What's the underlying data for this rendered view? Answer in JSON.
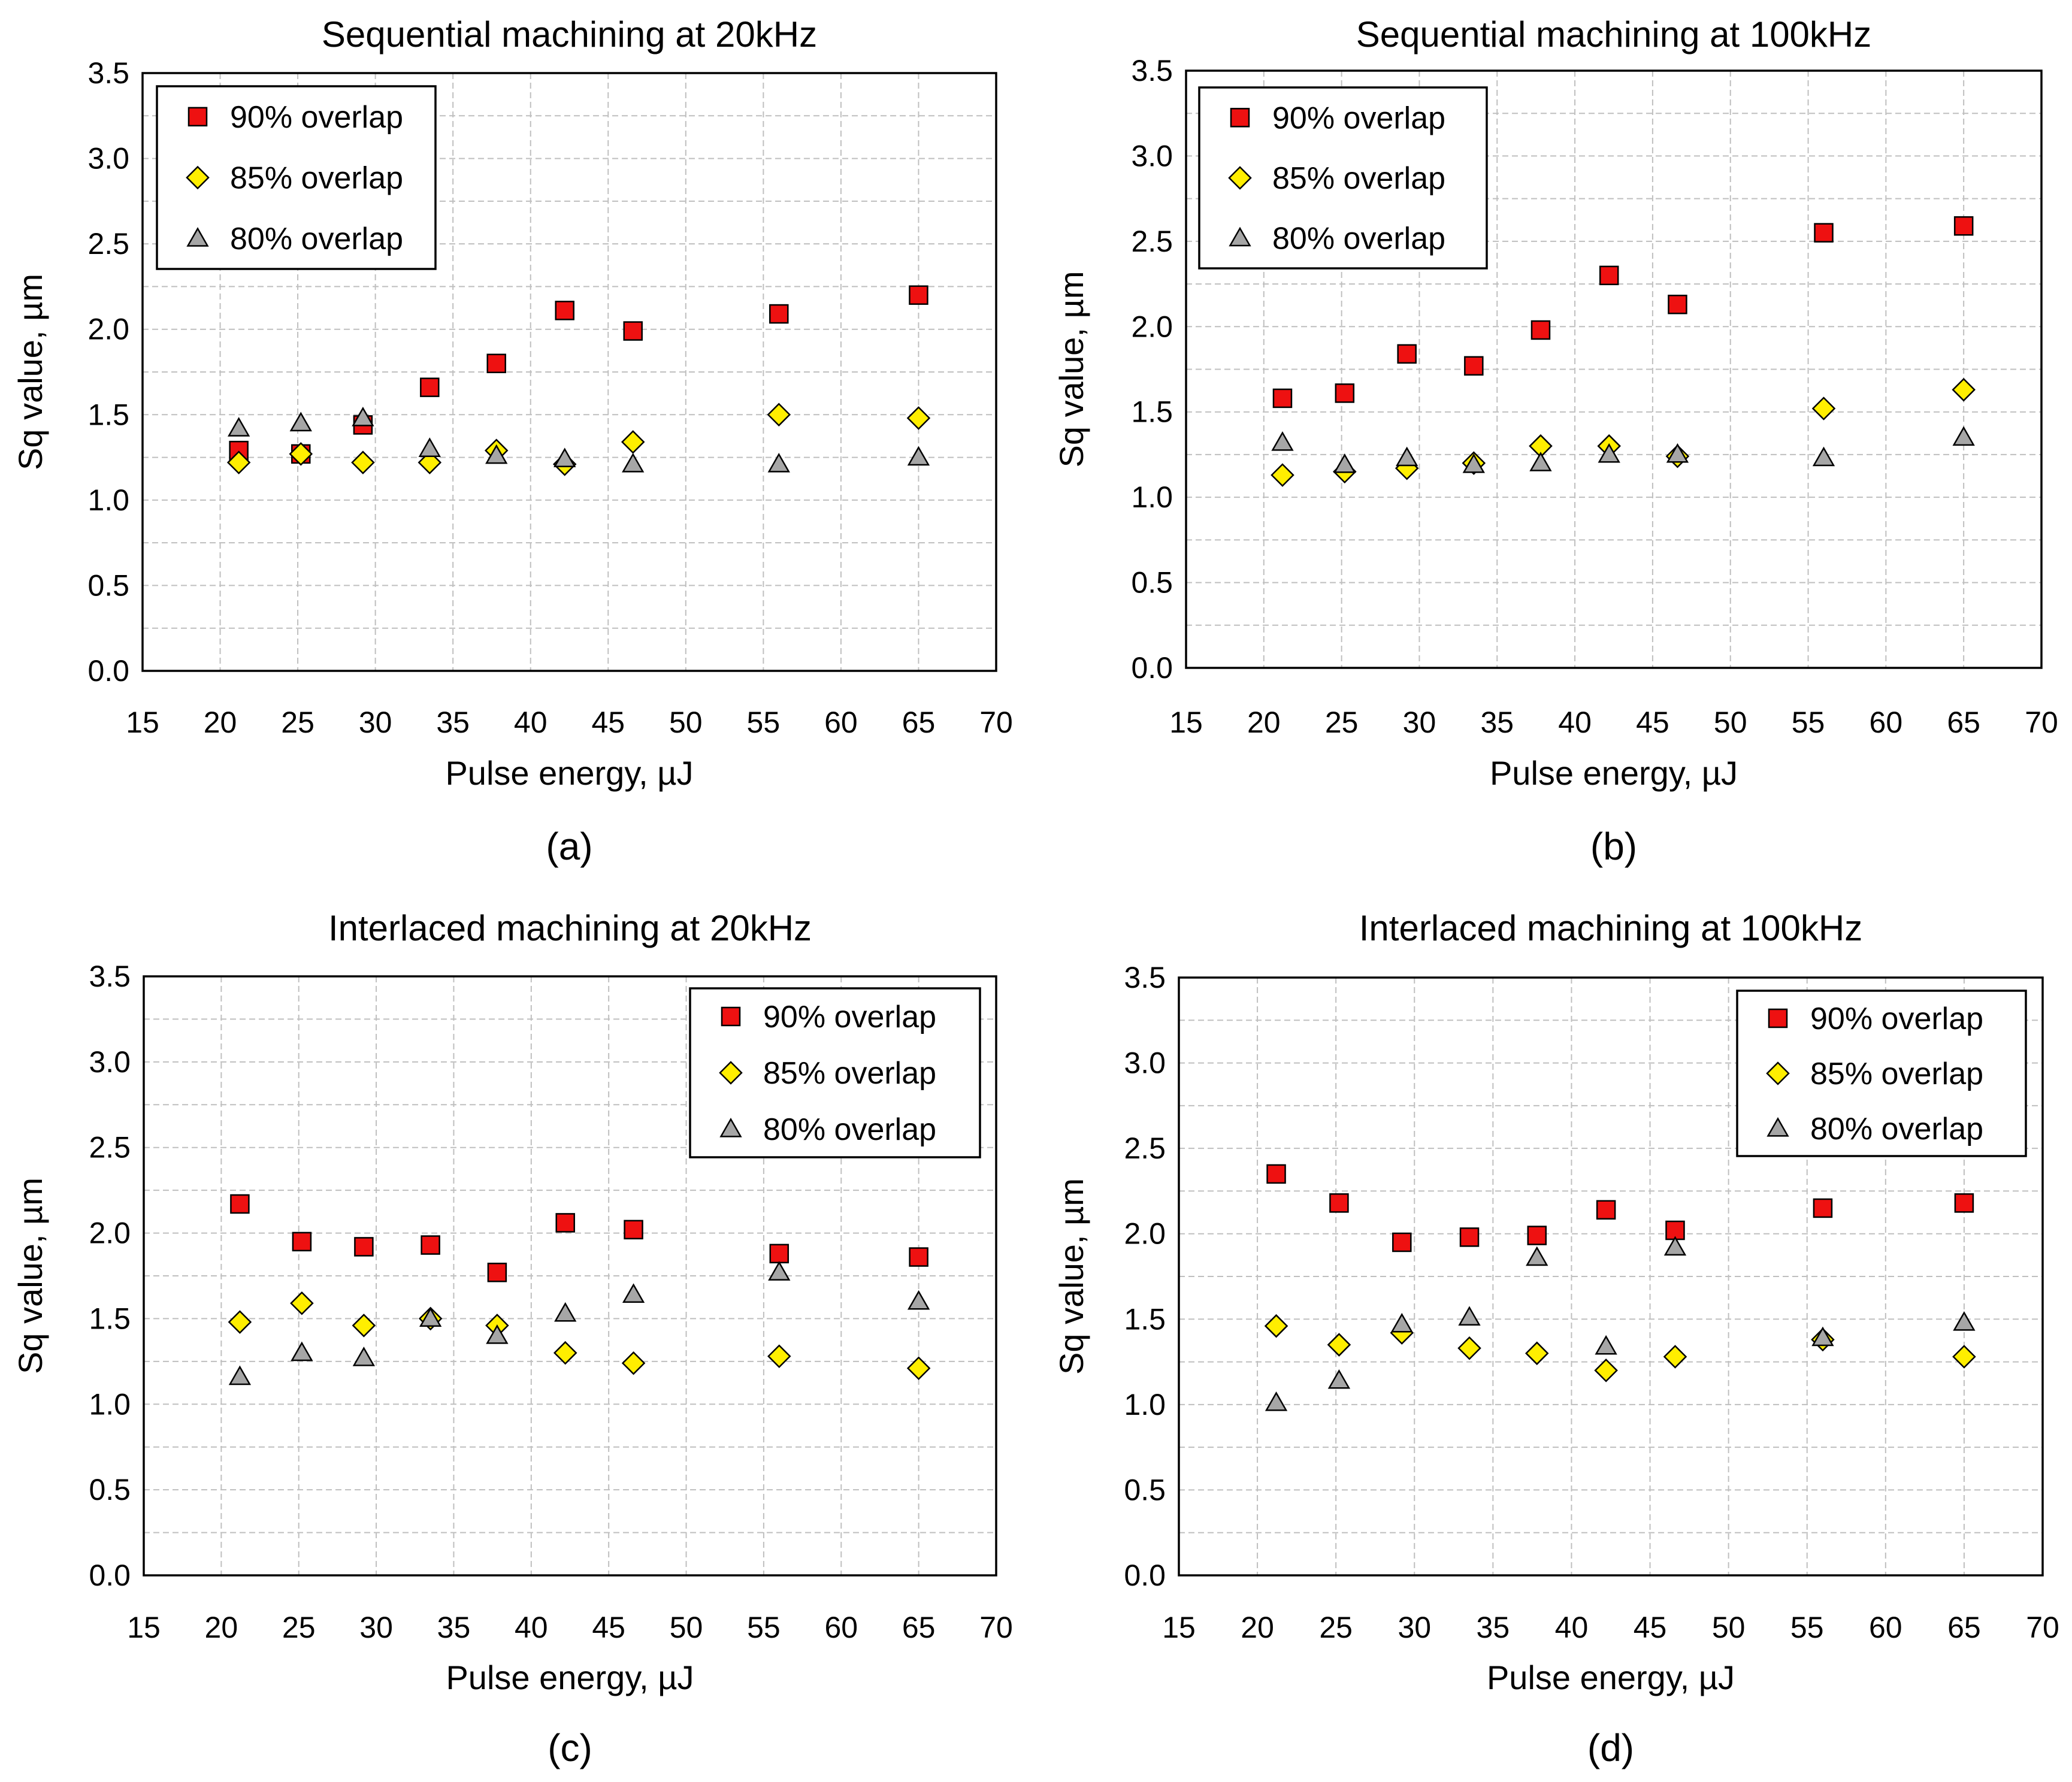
{
  "figure": {
    "marker_colors": {
      "90": "#ee1111",
      "85": "#ffee00",
      "80": "#a6a6a6"
    },
    "marker_icons": {
      "90": "square-marker-icon",
      "85": "diamond-marker-icon",
      "80": "triangle-marker-icon"
    }
  },
  "chart_data": [
    {
      "type": "scatter",
      "id": "a",
      "caption": "(a)",
      "title": "Sequential machining at 20kHz",
      "xlabel": "Pulse energy, µJ",
      "ylabel": "Sq value, µm",
      "xlim": [
        15,
        70
      ],
      "ylim": [
        0.0,
        3.5
      ],
      "xticks": [
        "15",
        "20",
        "25",
        "30",
        "35",
        "40",
        "45",
        "50",
        "55",
        "60",
        "65",
        "70"
      ],
      "yticks": [
        "0.0",
        "0.5",
        "1.0",
        "1.5",
        "2.0",
        "2.5",
        "3.0",
        "3.5"
      ],
      "legend_position": "top-left",
      "x": [
        21.2,
        25.2,
        29.2,
        33.5,
        37.8,
        42.2,
        46.6,
        56.0,
        65.0
      ],
      "series": [
        {
          "name": "90% overlap",
          "marker": "square",
          "values": [
            1.29,
            1.27,
            1.44,
            1.66,
            1.8,
            2.11,
            1.99,
            2.09,
            2.2
          ]
        },
        {
          "name": "85% overlap",
          "marker": "diamond",
          "values": [
            1.22,
            1.27,
            1.22,
            1.22,
            1.29,
            1.21,
            1.34,
            1.5,
            1.48
          ]
        },
        {
          "name": "80% overlap",
          "marker": "triangle",
          "values": [
            1.42,
            1.45,
            1.48,
            1.3,
            1.26,
            1.24,
            1.21,
            1.21,
            1.25
          ]
        }
      ]
    },
    {
      "type": "scatter",
      "id": "b",
      "caption": "(b)",
      "title": "Sequential machining at 100kHz",
      "xlabel": "Pulse energy, µJ",
      "ylabel": "Sq value, µm",
      "xlim": [
        15,
        70
      ],
      "ylim": [
        0.0,
        3.5
      ],
      "xticks": [
        "15",
        "20",
        "25",
        "30",
        "35",
        "40",
        "45",
        "50",
        "55",
        "60",
        "65",
        "70"
      ],
      "yticks": [
        "0.0",
        "0.5",
        "1.0",
        "1.5",
        "2.0",
        "2.5",
        "3.0",
        "3.5"
      ],
      "legend_position": "top-left",
      "x": [
        21.2,
        25.2,
        29.2,
        33.5,
        37.8,
        42.2,
        46.6,
        56.0,
        65.0
      ],
      "series": [
        {
          "name": "90% overlap",
          "marker": "square",
          "values": [
            1.58,
            1.61,
            1.84,
            1.77,
            1.98,
            2.3,
            2.13,
            2.55,
            2.59
          ]
        },
        {
          "name": "85% overlap",
          "marker": "diamond",
          "values": [
            1.13,
            1.15,
            1.17,
            1.2,
            1.3,
            1.3,
            1.24,
            1.52,
            1.63
          ]
        },
        {
          "name": "80% overlap",
          "marker": "triangle",
          "values": [
            1.32,
            1.19,
            1.23,
            1.19,
            1.2,
            1.25,
            1.25,
            1.23,
            1.35
          ]
        }
      ]
    },
    {
      "type": "scatter",
      "id": "c",
      "caption": "(c)",
      "title": "Interlaced machining at 20kHz",
      "xlabel": "Pulse energy, µJ",
      "ylabel": "Sq value, µm",
      "xlim": [
        15,
        70
      ],
      "ylim": [
        0.0,
        3.5
      ],
      "xticks": [
        "15",
        "20",
        "25",
        "30",
        "35",
        "40",
        "45",
        "50",
        "55",
        "60",
        "65",
        "70"
      ],
      "yticks": [
        "0.0",
        "0.5",
        "1.0",
        "1.5",
        "2.0",
        "2.5",
        "3.0",
        "3.5"
      ],
      "legend_position": "top-right",
      "x": [
        21.2,
        25.2,
        29.2,
        33.5,
        37.8,
        42.2,
        46.6,
        56.0,
        65.0
      ],
      "series": [
        {
          "name": "90% overlap",
          "marker": "square",
          "values": [
            2.17,
            1.95,
            1.92,
            1.93,
            1.77,
            2.06,
            2.02,
            1.88,
            1.86
          ]
        },
        {
          "name": "85% overlap",
          "marker": "diamond",
          "values": [
            1.48,
            1.59,
            1.46,
            1.5,
            1.46,
            1.3,
            1.24,
            1.28,
            1.21
          ]
        },
        {
          "name": "80% overlap",
          "marker": "triangle",
          "values": [
            1.16,
            1.3,
            1.27,
            1.5,
            1.4,
            1.53,
            1.64,
            1.77,
            1.6
          ]
        }
      ]
    },
    {
      "type": "scatter",
      "id": "d",
      "caption": "(d)",
      "title": "Interlaced machining at 100kHz",
      "xlabel": "Pulse energy, µJ",
      "ylabel": "Sq value, µm",
      "xlim": [
        15,
        70
      ],
      "ylim": [
        0.0,
        3.5
      ],
      "xticks": [
        "15",
        "20",
        "25",
        "30",
        "35",
        "40",
        "45",
        "50",
        "55",
        "60",
        "65",
        "70"
      ],
      "yticks": [
        "0.0",
        "0.5",
        "1.0",
        "1.5",
        "2.0",
        "2.5",
        "3.0",
        "3.5"
      ],
      "legend_position": "top-right",
      "x": [
        21.2,
        25.2,
        29.2,
        33.5,
        37.8,
        42.2,
        46.6,
        56.0,
        65.0
      ],
      "series": [
        {
          "name": "90% overlap",
          "marker": "square",
          "values": [
            2.35,
            2.18,
            1.95,
            1.98,
            1.99,
            2.14,
            2.02,
            2.15,
            2.18
          ]
        },
        {
          "name": "85% overlap",
          "marker": "diamond",
          "values": [
            1.46,
            1.35,
            1.42,
            1.33,
            1.3,
            1.2,
            1.28,
            1.38,
            1.28
          ]
        },
        {
          "name": "80% overlap",
          "marker": "triangle",
          "values": [
            1.01,
            1.14,
            1.47,
            1.51,
            1.86,
            1.34,
            1.92,
            1.39,
            1.48
          ]
        }
      ]
    }
  ]
}
